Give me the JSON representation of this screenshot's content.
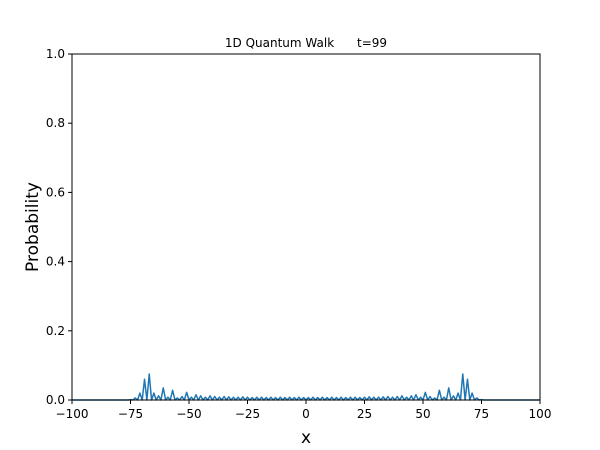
{
  "chart_data": {
    "type": "line",
    "title": "1D Quantum Walk      t=99",
    "xlabel": "x",
    "ylabel": "Probability",
    "x": [
      -100,
      -99,
      -98,
      -97,
      -96,
      -95,
      -94,
      -93,
      -92,
      -91,
      -90,
      -89,
      -88,
      -87,
      -86,
      -85,
      -84,
      -83,
      -82,
      -81,
      -80,
      -79,
      -78,
      -77,
      -76,
      -75,
      -74,
      -73,
      -72,
      -71,
      -70,
      -69,
      -68,
      -67,
      -66,
      -65,
      -64,
      -63,
      -62,
      -61,
      -60,
      -59,
      -58,
      -57,
      -56,
      -55,
      -54,
      -53,
      -52,
      -51,
      -50,
      -49,
      -48,
      -47,
      -46,
      -45,
      -44,
      -43,
      -42,
      -41,
      -40,
      -39,
      -38,
      -37,
      -36,
      -35,
      -34,
      -33,
      -32,
      -31,
      -30,
      -29,
      -28,
      -27,
      -26,
      -25,
      -24,
      -23,
      -22,
      -21,
      -20,
      -19,
      -18,
      -17,
      -16,
      -15,
      -14,
      -13,
      -12,
      -11,
      -10,
      -9,
      -8,
      -7,
      -6,
      -5,
      -4,
      -3,
      -2,
      -1,
      0,
      1,
      2,
      3,
      4,
      5,
      6,
      7,
      8,
      9,
      10,
      11,
      12,
      13,
      14,
      15,
      16,
      17,
      18,
      19,
      20,
      21,
      22,
      23,
      24,
      25,
      26,
      27,
      28,
      29,
      30,
      31,
      32,
      33,
      34,
      35,
      36,
      37,
      38,
      39,
      40,
      41,
      42,
      43,
      44,
      45,
      46,
      47,
      48,
      49,
      50,
      51,
      52,
      53,
      54,
      55,
      56,
      57,
      58,
      59,
      60,
      61,
      62,
      63,
      64,
      65,
      66,
      67,
      68,
      69,
      70,
      71,
      72,
      73,
      74,
      75,
      76,
      77,
      78,
      79,
      80,
      81,
      82,
      83,
      84,
      85,
      86,
      87,
      88,
      89,
      90,
      91,
      92,
      93,
      94,
      95,
      96,
      97,
      98,
      99,
      100
    ],
    "series": [
      {
        "color": "#1f77b4",
        "values": [
          0,
          0,
          0,
          0,
          0,
          0,
          0,
          0,
          0,
          0,
          0,
          0,
          0,
          0,
          0,
          0,
          0,
          0,
          0,
          0,
          0,
          0,
          0,
          0,
          0,
          0.001,
          0,
          0.006,
          0,
          0.02,
          0,
          0.06,
          0,
          0.075,
          0,
          0.02,
          0,
          0.012,
          0,
          0.035,
          0,
          0.008,
          0,
          0.028,
          0,
          0.006,
          0,
          0.01,
          0,
          0.022,
          0,
          0.008,
          0,
          0.015,
          0,
          0.012,
          0,
          0.008,
          0,
          0.012,
          0,
          0.01,
          0,
          0.008,
          0,
          0.01,
          0,
          0.009,
          0,
          0.008,
          0,
          0.008,
          0,
          0.009,
          0,
          0.008,
          0,
          0.007,
          0,
          0.008,
          0,
          0.008,
          0,
          0.007,
          0,
          0.008,
          0,
          0.007,
          0,
          0.008,
          0,
          0.007,
          0,
          0.008,
          0,
          0.007,
          0,
          0.008,
          0,
          0.007,
          0,
          0.007,
          0,
          0.008,
          0,
          0.007,
          0,
          0.008,
          0,
          0.007,
          0,
          0.008,
          0,
          0.007,
          0,
          0.008,
          0,
          0.007,
          0,
          0.008,
          0,
          0.008,
          0,
          0.007,
          0,
          0.008,
          0,
          0.009,
          0,
          0.008,
          0,
          0.008,
          0,
          0.009,
          0,
          0.01,
          0,
          0.008,
          0,
          0.01,
          0,
          0.012,
          0,
          0.008,
          0,
          0.012,
          0,
          0.015,
          0,
          0.008,
          0,
          0.022,
          0,
          0.01,
          0,
          0.006,
          0,
          0.028,
          0,
          0.008,
          0,
          0.035,
          0,
          0.012,
          0,
          0.02,
          0,
          0.075,
          0,
          0.06,
          0,
          0.02,
          0,
          0.006,
          0,
          0.001,
          0,
          0,
          0,
          0,
          0,
          0,
          0,
          0,
          0,
          0,
          0,
          0,
          0,
          0,
          0,
          0,
          0,
          0,
          0,
          0,
          0,
          0,
          0,
          0,
          0
        ]
      }
    ],
    "xlim": [
      -100,
      100
    ],
    "ylim": [
      0,
      1
    ],
    "xticks": [
      {
        "value": -100,
        "label": "−100"
      },
      {
        "value": -75,
        "label": "−75"
      },
      {
        "value": -50,
        "label": "−50"
      },
      {
        "value": -25,
        "label": "−25"
      },
      0,
      25,
      50,
      75,
      100
    ],
    "yticks": [
      {
        "value": 0,
        "label": "0.0"
      },
      0.2,
      0.4,
      0.6,
      0.8,
      {
        "value": 1,
        "label": "1.0"
      }
    ]
  }
}
